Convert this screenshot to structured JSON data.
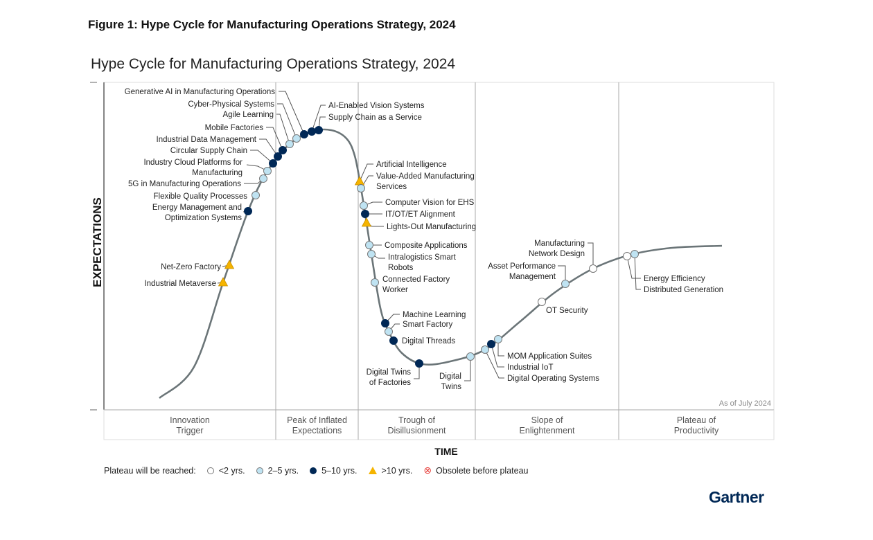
{
  "figure_title": "Figure 1: Hype Cycle for Manufacturing Operations Strategy, 2024",
  "brand": "Gartner",
  "chart_data": {
    "type": "hype-cycle",
    "title": "Hype Cycle for Manufacturing Operations Strategy, 2024",
    "xlabel": "TIME",
    "ylabel": "EXPECTATIONS",
    "note": "As of July 2024",
    "phases": [
      [
        "Innovation",
        "Trigger"
      ],
      [
        "Peak of Inflated",
        "Expectations"
      ],
      [
        "Trough of",
        "Disillusionment"
      ],
      [
        "Slope of",
        "Enlightenment"
      ],
      [
        "Plateau of",
        "Productivity"
      ]
    ],
    "legend": {
      "title": "Plateau will be reached:",
      "entries": [
        {
          "key": "lt2",
          "label": "<2 yrs.",
          "color": "#ffffff",
          "shape": "circle"
        },
        {
          "key": "2to5",
          "label": "2–5 yrs.",
          "color": "#bfe3f2",
          "shape": "circle"
        },
        {
          "key": "5to10",
          "label": "5–10 yrs.",
          "color": "#002856",
          "shape": "circle"
        },
        {
          "key": "gt10",
          "label": ">10 yrs.",
          "color": "#f5b400",
          "shape": "triangle"
        },
        {
          "key": "obsolete",
          "label": "Obsolete before plateau",
          "color": "#e53935",
          "shape": "x-circle"
        }
      ]
    },
    "innovations": [
      {
        "label": [
          "Industrial Metaverse"
        ],
        "phase": "Innovation Trigger",
        "plateau": "gt10"
      },
      {
        "label": [
          "Net-Zero Factory"
        ],
        "phase": "Innovation Trigger",
        "plateau": "gt10"
      },
      {
        "label": [
          "Energy Management and",
          "Optimization Systems"
        ],
        "phase": "Innovation Trigger",
        "plateau": "5to10"
      },
      {
        "label": [
          "Flexible Quality Processes"
        ],
        "phase": "Innovation Trigger",
        "plateau": "2to5"
      },
      {
        "label": [
          "5G in Manufacturing Operations"
        ],
        "phase": "Innovation Trigger",
        "plateau": "2to5"
      },
      {
        "label": [
          "Industry Cloud Platforms for",
          "Manufacturing"
        ],
        "phase": "Innovation Trigger",
        "plateau": "2to5"
      },
      {
        "label": [
          "Circular Supply Chain"
        ],
        "phase": "Peak of Inflated Expectations",
        "plateau": "5to10"
      },
      {
        "label": [
          "Industrial Data Management"
        ],
        "phase": "Peak of Inflated Expectations",
        "plateau": "5to10"
      },
      {
        "label": [
          "Mobile Factories"
        ],
        "phase": "Peak of Inflated Expectations",
        "plateau": "5to10"
      },
      {
        "label": [
          "Agile Learning"
        ],
        "phase": "Peak of Inflated Expectations",
        "plateau": "2to5"
      },
      {
        "label": [
          "Cyber-Physical Systems"
        ],
        "phase": "Peak of Inflated Expectations",
        "plateau": "2to5"
      },
      {
        "label": [
          "Generative AI in Manufacturing Operations"
        ],
        "phase": "Peak of Inflated Expectations",
        "plateau": "5to10"
      },
      {
        "label": [
          "AI-Enabled Vision Systems"
        ],
        "phase": "Peak of Inflated Expectations",
        "plateau": "5to10"
      },
      {
        "label": [
          "Supply Chain as a Service"
        ],
        "phase": "Peak of Inflated Expectations",
        "plateau": "5to10"
      },
      {
        "label": [
          "Artificial Intelligence"
        ],
        "phase": "Trough of Disillusionment",
        "plateau": "gt10"
      },
      {
        "label": [
          "Value-Added Manufacturing",
          "Services"
        ],
        "phase": "Trough of Disillusionment",
        "plateau": "2to5"
      },
      {
        "label": [
          "Computer Vision for EHS"
        ],
        "phase": "Trough of Disillusionment",
        "plateau": "2to5"
      },
      {
        "label": [
          "IT/OT/ET Alignment"
        ],
        "phase": "Trough of Disillusionment",
        "plateau": "5to10"
      },
      {
        "label": [
          "Lights-Out Manufacturing"
        ],
        "phase": "Trough of Disillusionment",
        "plateau": "gt10"
      },
      {
        "label": [
          "Composite Applications"
        ],
        "phase": "Trough of Disillusionment",
        "plateau": "2to5"
      },
      {
        "label": [
          "Intralogistics Smart",
          "Robots"
        ],
        "phase": "Trough of Disillusionment",
        "plateau": "2to5"
      },
      {
        "label": [
          "Connected Factory",
          "Worker"
        ],
        "phase": "Trough of Disillusionment",
        "plateau": "2to5"
      },
      {
        "label": [
          "Machine Learning"
        ],
        "phase": "Trough of Disillusionment",
        "plateau": "5to10"
      },
      {
        "label": [
          "Smart Factory"
        ],
        "phase": "Trough of Disillusionment",
        "plateau": "2to5"
      },
      {
        "label": [
          "Digital Threads"
        ],
        "phase": "Trough of Disillusionment",
        "plateau": "5to10"
      },
      {
        "label": [
          "Digital Twins",
          "of Factories"
        ],
        "phase": "Trough of Disillusionment",
        "plateau": "5to10"
      },
      {
        "label": [
          "Digital",
          "Twins"
        ],
        "phase": "Trough of Disillusionment",
        "plateau": "2to5"
      },
      {
        "label": [
          "Digital Operating Systems"
        ],
        "phase": "Slope of Enlightenment",
        "plateau": "2to5"
      },
      {
        "label": [
          "Industrial IoT"
        ],
        "phase": "Slope of Enlightenment",
        "plateau": "5to10"
      },
      {
        "label": [
          "MOM Application Suites"
        ],
        "phase": "Slope of Enlightenment",
        "plateau": "2to5"
      },
      {
        "label": [
          "OT Security"
        ],
        "phase": "Slope of Enlightenment",
        "plateau": "lt2"
      },
      {
        "label": [
          "Asset Performance",
          "Management"
        ],
        "phase": "Slope of Enlightenment",
        "plateau": "2to5"
      },
      {
        "label": [
          "Manufacturing",
          "Network Design"
        ],
        "phase": "Slope of Enlightenment",
        "plateau": "lt2"
      },
      {
        "label": [
          "Energy Efficiency"
        ],
        "phase": "Plateau of Productivity",
        "plateau": "lt2"
      },
      {
        "label": [
          "Distributed Generation"
        ],
        "phase": "Plateau of Productivity",
        "plateau": "2to5"
      }
    ]
  }
}
